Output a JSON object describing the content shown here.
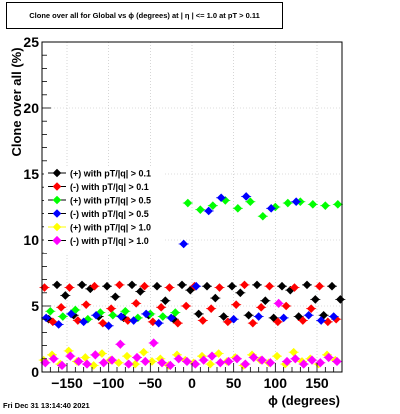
{
  "chart_title": "Clone  over all for Global vs ϕ (degrees) at |  η | <= 1.0 at pT > 0.11",
  "footer_timestamp": "Fri Dec 31 13:14:40 2021",
  "chart_data": {
    "type": "scatter",
    "title": "Clone  over all for Global vs ϕ (degrees) at |  η | <= 1.0 at pT > 0.11",
    "xlabel": "ϕ (degrees)",
    "ylabel": "Clone  over all (%)",
    "xlim": [
      -180,
      180
    ],
    "ylim": [
      0,
      25
    ],
    "x_ticks": [
      -150,
      -100,
      -50,
      0,
      50,
      100,
      150
    ],
    "y_ticks": [
      0,
      5,
      10,
      15,
      20,
      25
    ],
    "legend_position": "left-middle",
    "series": [
      {
        "name": "(+) with pT/|q| > 0.1",
        "color": "#000000",
        "marker": "circle",
        "x": [
          -172,
          -162,
          -152,
          -142,
          -132,
          -122,
          -112,
          -102,
          -92,
          -82,
          -72,
          -62,
          -52,
          -42,
          -32,
          -22,
          -12,
          -2,
          8,
          18,
          28,
          38,
          48,
          58,
          68,
          78,
          88,
          98,
          108,
          118,
          128,
          138,
          148,
          158,
          168,
          178
        ],
        "y": [
          4.0,
          6.6,
          5.8,
          4.3,
          6.6,
          6.3,
          4.2,
          6.5,
          5.7,
          4.1,
          6.6,
          6.1,
          4.3,
          6.5,
          5.4,
          4.0,
          6.6,
          6.2,
          4.4,
          6.5,
          5.6,
          4.2,
          6.5,
          6.0,
          4.3,
          6.6,
          5.4,
          4.1,
          6.5,
          6.2,
          4.2,
          6.6,
          5.5,
          4.3,
          6.5,
          5.5
        ]
      },
      {
        "name": "(-) with pT/|q| > 0.1",
        "color": "#ff0000",
        "marker": "circle",
        "x": [
          -177,
          -167,
          -157,
          -147,
          -137,
          -127,
          -117,
          -107,
          -97,
          -87,
          -77,
          -67,
          -57,
          -47,
          -37,
          -27,
          -17,
          -7,
          3,
          13,
          23,
          33,
          43,
          53,
          63,
          73,
          83,
          93,
          103,
          113,
          123,
          133,
          143,
          153,
          163,
          173
        ],
        "y": [
          6.4,
          3.8,
          4.9,
          6.4,
          3.9,
          5.1,
          6.5,
          3.7,
          4.8,
          6.6,
          3.9,
          5.2,
          6.5,
          3.8,
          4.9,
          6.4,
          3.7,
          5.0,
          6.5,
          3.9,
          4.8,
          6.4,
          3.8,
          5.1,
          6.6,
          3.7,
          4.9,
          6.5,
          3.8,
          5.0,
          6.4,
          3.9,
          4.8,
          6.5,
          3.8,
          4.0
        ]
      },
      {
        "name": "(+) with pT/|q| > 0.5",
        "color": "#00ff00",
        "marker": "circle",
        "x": [
          -170,
          -155,
          -140,
          -125,
          -110,
          -95,
          -80,
          -65,
          -50,
          -35,
          -20,
          -5,
          10,
          25,
          40,
          55,
          70,
          85,
          100,
          115,
          130,
          145,
          160,
          175
        ],
        "y": [
          4.6,
          4.2,
          4.7,
          4.0,
          4.5,
          4.3,
          4.6,
          4.1,
          4.4,
          4.2,
          4.5,
          12.8,
          12.3,
          12.6,
          13.0,
          12.4,
          12.9,
          11.8,
          12.5,
          12.8,
          12.9,
          12.7,
          12.6,
          12.7
        ]
      },
      {
        "name": "(-) with pT/|q| > 0.5",
        "color": "#0000ff",
        "marker": "circle",
        "x": [
          -175,
          -160,
          -145,
          -130,
          -115,
          -100,
          -85,
          -70,
          -55,
          -40,
          -25,
          -10,
          5,
          20,
          35,
          50,
          65,
          80,
          95,
          110,
          125,
          140,
          155,
          170
        ],
        "y": [
          4.1,
          3.6,
          4.4,
          3.8,
          4.3,
          3.5,
          4.2,
          3.9,
          4.4,
          3.7,
          4.1,
          9.7,
          6.5,
          12.2,
          13.2,
          4.0,
          13.3,
          4.2,
          12.4,
          4.1,
          12.9,
          4.3,
          3.9,
          4.2
        ]
      },
      {
        "name": "(+) with pT/|q| > 1.0",
        "color": "#ffff00",
        "marker": "circle",
        "x": [
          -178,
          -168,
          -158,
          -148,
          -138,
          -128,
          -118,
          -108,
          -98,
          -88,
          -78,
          -68,
          -58,
          -48,
          -38,
          -28,
          -18,
          -8,
          2,
          12,
          22,
          32,
          42,
          52,
          62,
          72,
          82,
          92,
          102,
          112,
          122,
          132,
          142,
          152,
          162,
          172
        ],
        "y": [
          0.9,
          1.3,
          0.6,
          1.6,
          0.8,
          1.1,
          0.5,
          1.4,
          0.9,
          0.7,
          1.2,
          0.6,
          1.5,
          0.8,
          1.0,
          0.5,
          1.3,
          0.9,
          0.7,
          1.2,
          0.6,
          1.4,
          0.8,
          1.1,
          0.5,
          1.3,
          0.9,
          0.7,
          1.2,
          0.6,
          1.5,
          0.8,
          1.0,
          0.6,
          1.3,
          0.9
        ]
      },
      {
        "name": "(-) with pT/|q| > 1.0",
        "color": "#ff00ff",
        "marker": "diamond",
        "x": [
          -176,
          -166,
          -156,
          -146,
          -136,
          -126,
          -116,
          -106,
          -96,
          -86,
          -76,
          -66,
          -56,
          -46,
          -36,
          -26,
          -16,
          -6,
          4,
          14,
          24,
          34,
          44,
          54,
          64,
          74,
          84,
          94,
          104,
          114,
          124,
          134,
          144,
          154,
          164,
          174
        ],
        "y": [
          0.7,
          1.0,
          0.5,
          1.2,
          0.8,
          0.6,
          1.3,
          0.7,
          0.9,
          2.1,
          0.6,
          1.1,
          0.8,
          2.2,
          0.7,
          0.5,
          1.0,
          0.8,
          0.6,
          0.9,
          1.2,
          0.7,
          0.8,
          1.0,
          0.6,
          1.1,
          0.9,
          0.7,
          5.2,
          0.8,
          1.0,
          0.6,
          0.9,
          0.7,
          1.1,
          0.8
        ]
      }
    ]
  }
}
